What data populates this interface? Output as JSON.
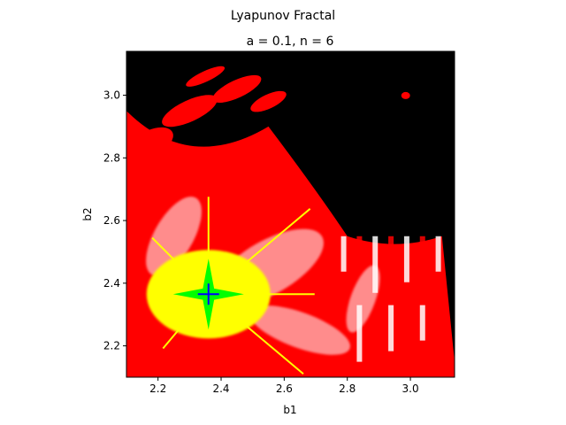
{
  "figure": {
    "suptitle": "Lyapunov Fractal"
  },
  "chart_data": {
    "type": "heatmap",
    "title": "a = 0.1, n = 6",
    "xlabel": "b1",
    "ylabel": "b2",
    "xlim": [
      2.1,
      3.14
    ],
    "ylim": [
      2.1,
      3.14
    ],
    "xticks": [
      2.2,
      2.4,
      2.6,
      2.8,
      3.0
    ],
    "yticks": [
      2.2,
      2.4,
      2.6,
      2.8,
      3.0
    ],
    "xtick_labels": [
      "2.2",
      "2.4",
      "2.6",
      "2.8",
      "3.0"
    ],
    "ytick_labels": [
      "2.2",
      "2.4",
      "2.6",
      "2.8",
      "3.0"
    ],
    "grid": false,
    "colormap": [
      "#000000",
      "#ff0000",
      "#ffffff",
      "#ffff00",
      "#00ff00",
      "#0000ff"
    ],
    "background": "#000000"
  }
}
